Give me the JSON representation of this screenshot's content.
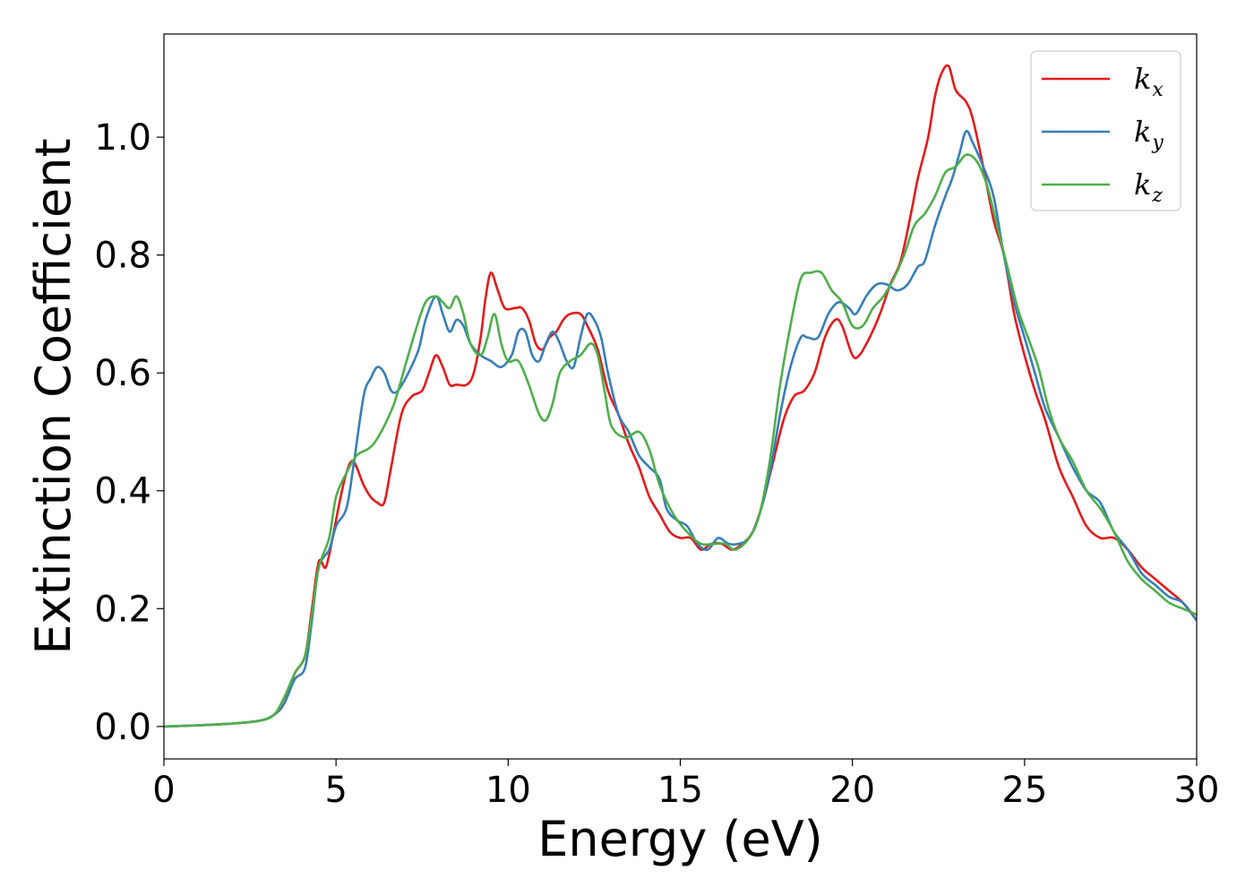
{
  "chart_data": {
    "type": "line",
    "title": "",
    "xlabel": "Energy (eV)",
    "ylabel": "Extinction Coefficient",
    "xlim": [
      0,
      30
    ],
    "ylim": [
      -0.055,
      1.175
    ],
    "xticks": [
      0,
      5,
      10,
      15,
      20,
      25,
      30
    ],
    "yticks": [
      0.0,
      0.2,
      0.4,
      0.6,
      0.8,
      1.0
    ],
    "grid": false,
    "legend_position": "top-right",
    "series": [
      {
        "name": "k",
        "subscript": "x",
        "color": "#e41a1c",
        "points": [
          [
            0,
            0
          ],
          [
            1,
            0.002
          ],
          [
            2,
            0.005
          ],
          [
            2.8,
            0.01
          ],
          [
            3.2,
            0.02
          ],
          [
            3.5,
            0.04
          ],
          [
            3.8,
            0.09
          ],
          [
            4.1,
            0.12
          ],
          [
            4.3,
            0.2
          ],
          [
            4.5,
            0.28
          ],
          [
            4.7,
            0.27
          ],
          [
            4.9,
            0.32
          ],
          [
            5.1,
            0.38
          ],
          [
            5.3,
            0.43
          ],
          [
            5.5,
            0.45
          ],
          [
            5.8,
            0.41
          ],
          [
            6.0,
            0.39
          ],
          [
            6.2,
            0.38
          ],
          [
            6.4,
            0.38
          ],
          [
            6.6,
            0.44
          ],
          [
            6.9,
            0.53
          ],
          [
            7.2,
            0.56
          ],
          [
            7.5,
            0.57
          ],
          [
            7.7,
            0.6
          ],
          [
            7.9,
            0.63
          ],
          [
            8.1,
            0.61
          ],
          [
            8.3,
            0.58
          ],
          [
            8.5,
            0.58
          ],
          [
            8.8,
            0.58
          ],
          [
            9.0,
            0.6
          ],
          [
            9.2,
            0.66
          ],
          [
            9.35,
            0.73
          ],
          [
            9.5,
            0.77
          ],
          [
            9.7,
            0.74
          ],
          [
            9.9,
            0.71
          ],
          [
            10.2,
            0.71
          ],
          [
            10.4,
            0.71
          ],
          [
            10.6,
            0.69
          ],
          [
            10.8,
            0.65
          ],
          [
            11.0,
            0.64
          ],
          [
            11.2,
            0.66
          ],
          [
            11.4,
            0.67
          ],
          [
            11.6,
            0.69
          ],
          [
            11.8,
            0.7
          ],
          [
            12.1,
            0.7
          ],
          [
            12.3,
            0.68
          ],
          [
            12.6,
            0.64
          ],
          [
            12.9,
            0.57
          ],
          [
            13.2,
            0.53
          ],
          [
            13.5,
            0.48
          ],
          [
            13.8,
            0.44
          ],
          [
            14.1,
            0.39
          ],
          [
            14.4,
            0.36
          ],
          [
            14.7,
            0.33
          ],
          [
            15.0,
            0.32
          ],
          [
            15.3,
            0.32
          ],
          [
            15.6,
            0.3
          ],
          [
            15.9,
            0.31
          ],
          [
            16.2,
            0.31
          ],
          [
            16.5,
            0.3
          ],
          [
            16.8,
            0.31
          ],
          [
            17.1,
            0.33
          ],
          [
            17.4,
            0.38
          ],
          [
            17.7,
            0.45
          ],
          [
            18.0,
            0.52
          ],
          [
            18.3,
            0.56
          ],
          [
            18.6,
            0.57
          ],
          [
            18.9,
            0.6
          ],
          [
            19.2,
            0.66
          ],
          [
            19.5,
            0.69
          ],
          [
            19.7,
            0.68
          ],
          [
            20.0,
            0.63
          ],
          [
            20.2,
            0.63
          ],
          [
            20.5,
            0.66
          ],
          [
            20.8,
            0.7
          ],
          [
            21.1,
            0.75
          ],
          [
            21.4,
            0.79
          ],
          [
            21.7,
            0.87
          ],
          [
            21.9,
            0.93
          ],
          [
            22.2,
            1.0
          ],
          [
            22.4,
            1.07
          ],
          [
            22.6,
            1.11
          ],
          [
            22.8,
            1.12
          ],
          [
            23.0,
            1.08
          ],
          [
            23.3,
            1.06
          ],
          [
            23.5,
            1.03
          ],
          [
            23.8,
            0.95
          ],
          [
            24.1,
            0.86
          ],
          [
            24.4,
            0.8
          ],
          [
            24.7,
            0.7
          ],
          [
            25.0,
            0.63
          ],
          [
            25.3,
            0.57
          ],
          [
            25.6,
            0.52
          ],
          [
            26.0,
            0.44
          ],
          [
            26.4,
            0.39
          ],
          [
            26.8,
            0.34
          ],
          [
            27.2,
            0.32
          ],
          [
            27.6,
            0.32
          ],
          [
            28.0,
            0.3
          ],
          [
            28.4,
            0.27
          ],
          [
            28.8,
            0.25
          ],
          [
            29.2,
            0.23
          ],
          [
            29.6,
            0.21
          ],
          [
            30,
            0.18
          ]
        ]
      },
      {
        "name": "k",
        "subscript": "y",
        "color": "#377eb8",
        "points": [
          [
            0,
            0
          ],
          [
            1,
            0.002
          ],
          [
            2,
            0.005
          ],
          [
            2.8,
            0.01
          ],
          [
            3.2,
            0.02
          ],
          [
            3.5,
            0.04
          ],
          [
            3.8,
            0.08
          ],
          [
            4.1,
            0.1
          ],
          [
            4.3,
            0.18
          ],
          [
            4.5,
            0.27
          ],
          [
            4.8,
            0.3
          ],
          [
            5.0,
            0.34
          ],
          [
            5.3,
            0.37
          ],
          [
            5.5,
            0.44
          ],
          [
            5.8,
            0.56
          ],
          [
            6.0,
            0.59
          ],
          [
            6.2,
            0.61
          ],
          [
            6.4,
            0.6
          ],
          [
            6.6,
            0.57
          ],
          [
            6.8,
            0.57
          ],
          [
            7.1,
            0.6
          ],
          [
            7.4,
            0.64
          ],
          [
            7.6,
            0.69
          ],
          [
            7.9,
            0.73
          ],
          [
            8.1,
            0.7
          ],
          [
            8.3,
            0.67
          ],
          [
            8.5,
            0.69
          ],
          [
            8.7,
            0.68
          ],
          [
            8.9,
            0.65
          ],
          [
            9.2,
            0.63
          ],
          [
            9.5,
            0.62
          ],
          [
            9.8,
            0.61
          ],
          [
            10.1,
            0.63
          ],
          [
            10.3,
            0.67
          ],
          [
            10.5,
            0.67
          ],
          [
            10.7,
            0.63
          ],
          [
            10.9,
            0.62
          ],
          [
            11.1,
            0.65
          ],
          [
            11.3,
            0.67
          ],
          [
            11.5,
            0.65
          ],
          [
            11.7,
            0.62
          ],
          [
            11.9,
            0.61
          ],
          [
            12.1,
            0.66
          ],
          [
            12.3,
            0.7
          ],
          [
            12.5,
            0.69
          ],
          [
            12.7,
            0.66
          ],
          [
            12.9,
            0.6
          ],
          [
            13.2,
            0.53
          ],
          [
            13.5,
            0.5
          ],
          [
            13.8,
            0.46
          ],
          [
            14.1,
            0.44
          ],
          [
            14.4,
            0.42
          ],
          [
            14.6,
            0.37
          ],
          [
            14.9,
            0.35
          ],
          [
            15.2,
            0.34
          ],
          [
            15.5,
            0.31
          ],
          [
            15.8,
            0.3
          ],
          [
            16.1,
            0.32
          ],
          [
            16.4,
            0.31
          ],
          [
            16.7,
            0.31
          ],
          [
            17.0,
            0.32
          ],
          [
            17.3,
            0.36
          ],
          [
            17.6,
            0.43
          ],
          [
            17.9,
            0.53
          ],
          [
            18.2,
            0.61
          ],
          [
            18.5,
            0.66
          ],
          [
            18.7,
            0.66
          ],
          [
            19.0,
            0.66
          ],
          [
            19.3,
            0.7
          ],
          [
            19.6,
            0.72
          ],
          [
            19.9,
            0.71
          ],
          [
            20.1,
            0.7
          ],
          [
            20.4,
            0.73
          ],
          [
            20.7,
            0.75
          ],
          [
            21.0,
            0.75
          ],
          [
            21.3,
            0.74
          ],
          [
            21.6,
            0.75
          ],
          [
            21.9,
            0.78
          ],
          [
            22.1,
            0.79
          ],
          [
            22.4,
            0.85
          ],
          [
            22.7,
            0.9
          ],
          [
            22.9,
            0.93
          ],
          [
            23.1,
            0.97
          ],
          [
            23.3,
            1.01
          ],
          [
            23.5,
            0.99
          ],
          [
            23.8,
            0.95
          ],
          [
            24.1,
            0.9
          ],
          [
            24.4,
            0.8
          ],
          [
            24.7,
            0.72
          ],
          [
            25.0,
            0.66
          ],
          [
            25.3,
            0.6
          ],
          [
            25.6,
            0.54
          ],
          [
            26.0,
            0.49
          ],
          [
            26.4,
            0.44
          ],
          [
            26.8,
            0.4
          ],
          [
            27.2,
            0.38
          ],
          [
            27.6,
            0.33
          ],
          [
            28.0,
            0.3
          ],
          [
            28.4,
            0.26
          ],
          [
            28.8,
            0.24
          ],
          [
            29.2,
            0.22
          ],
          [
            29.6,
            0.21
          ],
          [
            30,
            0.18
          ]
        ]
      },
      {
        "name": "k",
        "subscript": "z",
        "color": "#4daf4a",
        "points": [
          [
            0,
            0
          ],
          [
            1,
            0.002
          ],
          [
            2,
            0.005
          ],
          [
            2.8,
            0.01
          ],
          [
            3.2,
            0.02
          ],
          [
            3.5,
            0.05
          ],
          [
            3.8,
            0.09
          ],
          [
            4.1,
            0.12
          ],
          [
            4.3,
            0.19
          ],
          [
            4.5,
            0.27
          ],
          [
            4.8,
            0.32
          ],
          [
            5.0,
            0.39
          ],
          [
            5.3,
            0.43
          ],
          [
            5.6,
            0.46
          ],
          [
            5.9,
            0.47
          ],
          [
            6.1,
            0.48
          ],
          [
            6.4,
            0.51
          ],
          [
            6.7,
            0.55
          ],
          [
            7.0,
            0.61
          ],
          [
            7.3,
            0.67
          ],
          [
            7.6,
            0.72
          ],
          [
            7.9,
            0.73
          ],
          [
            8.1,
            0.72
          ],
          [
            8.3,
            0.71
          ],
          [
            8.5,
            0.73
          ],
          [
            8.7,
            0.7
          ],
          [
            8.9,
            0.65
          ],
          [
            9.2,
            0.63
          ],
          [
            9.4,
            0.66
          ],
          [
            9.6,
            0.7
          ],
          [
            9.8,
            0.65
          ],
          [
            10.0,
            0.62
          ],
          [
            10.3,
            0.62
          ],
          [
            10.6,
            0.58
          ],
          [
            10.9,
            0.53
          ],
          [
            11.1,
            0.52
          ],
          [
            11.3,
            0.55
          ],
          [
            11.5,
            0.6
          ],
          [
            11.8,
            0.62
          ],
          [
            12.1,
            0.63
          ],
          [
            12.4,
            0.65
          ],
          [
            12.6,
            0.63
          ],
          [
            12.8,
            0.57
          ],
          [
            13.0,
            0.51
          ],
          [
            13.4,
            0.49
          ],
          [
            13.8,
            0.5
          ],
          [
            14.1,
            0.47
          ],
          [
            14.4,
            0.41
          ],
          [
            14.8,
            0.36
          ],
          [
            15.2,
            0.33
          ],
          [
            15.6,
            0.31
          ],
          [
            16.0,
            0.31
          ],
          [
            16.3,
            0.31
          ],
          [
            16.6,
            0.3
          ],
          [
            17.0,
            0.32
          ],
          [
            17.3,
            0.36
          ],
          [
            17.6,
            0.45
          ],
          [
            17.9,
            0.58
          ],
          [
            18.2,
            0.68
          ],
          [
            18.5,
            0.76
          ],
          [
            18.8,
            0.77
          ],
          [
            19.1,
            0.77
          ],
          [
            19.4,
            0.74
          ],
          [
            19.7,
            0.72
          ],
          [
            20.0,
            0.68
          ],
          [
            20.3,
            0.68
          ],
          [
            20.6,
            0.71
          ],
          [
            20.9,
            0.73
          ],
          [
            21.2,
            0.76
          ],
          [
            21.5,
            0.8
          ],
          [
            21.8,
            0.85
          ],
          [
            22.1,
            0.87
          ],
          [
            22.4,
            0.9
          ],
          [
            22.7,
            0.94
          ],
          [
            23.0,
            0.95
          ],
          [
            23.3,
            0.97
          ],
          [
            23.6,
            0.96
          ],
          [
            23.9,
            0.92
          ],
          [
            24.2,
            0.85
          ],
          [
            24.5,
            0.78
          ],
          [
            24.8,
            0.71
          ],
          [
            25.1,
            0.66
          ],
          [
            25.4,
            0.61
          ],
          [
            25.7,
            0.54
          ],
          [
            26.0,
            0.49
          ],
          [
            26.4,
            0.45
          ],
          [
            26.8,
            0.4
          ],
          [
            27.2,
            0.37
          ],
          [
            27.6,
            0.33
          ],
          [
            28.0,
            0.28
          ],
          [
            28.4,
            0.25
          ],
          [
            28.8,
            0.23
          ],
          [
            29.2,
            0.21
          ],
          [
            29.6,
            0.2
          ],
          [
            30,
            0.19
          ]
        ]
      }
    ]
  }
}
